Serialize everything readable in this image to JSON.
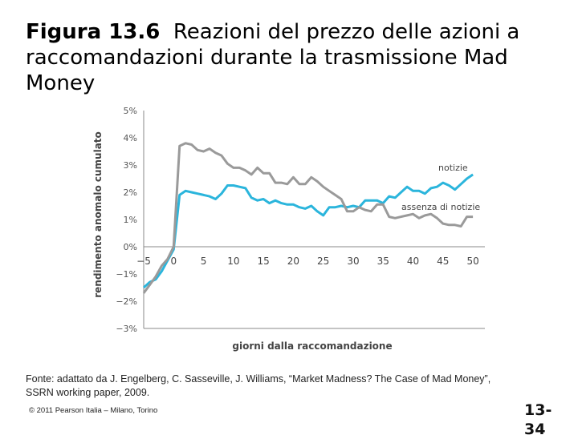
{
  "slide": {
    "title_lead": "Figura 13.6",
    "title_rest": "Reazioni del prezzo delle azioni a raccomandazioni durante la trasmissione Mad Money",
    "source": "Fonte: adattato da J. Engelberg, C. Sasseville, J. Williams, “Market Madness? The Case of Mad Money”, SSRN working paper, 2009.",
    "copyright": "© 2011 Pearson Italia – Milano, Torino",
    "page_number": "13-34"
  },
  "colors": {
    "news": "#2bb5dc",
    "no_news": "#9a9a9a",
    "axis": "#888888"
  },
  "chart_data": {
    "type": "line",
    "title": "",
    "xlabel": "giorni dalla raccomandazione",
    "ylabel": "rendimento anomalo cumulato",
    "xlim": [
      -5,
      52
    ],
    "ylim": [
      -3,
      5
    ],
    "x_ticks": [
      -5,
      0,
      5,
      10,
      15,
      20,
      25,
      30,
      35,
      40,
      45,
      50
    ],
    "x_tick_labels": [
      "-5",
      "0",
      "5",
      "10",
      "15",
      "20",
      "25",
      "30",
      "35",
      "40",
      "45",
      "50"
    ],
    "y_ticks": [
      -3,
      -2,
      -1,
      0,
      1,
      2,
      3,
      4,
      5
    ],
    "y_tick_labels": [
      "-3%",
      "-2%",
      "-1%",
      "0%",
      "1%",
      "2%",
      "3%",
      "4%",
      "5%"
    ],
    "series": [
      {
        "name": "notizie",
        "x": [
          -5,
          -4,
          -3,
          -2,
          -1,
          0,
          1,
          2,
          3,
          4,
          5,
          6,
          7,
          8,
          9,
          10,
          11,
          12,
          13,
          14,
          15,
          16,
          17,
          18,
          19,
          20,
          21,
          22,
          23,
          24,
          25,
          26,
          27,
          28,
          29,
          30,
          31,
          32,
          33,
          34,
          35,
          36,
          37,
          38,
          39,
          40,
          41,
          42,
          43,
          44,
          45,
          46,
          47,
          48,
          49,
          50
        ],
        "values": [
          -1.5,
          -1.3,
          -1.2,
          -0.9,
          -0.5,
          -0.1,
          1.9,
          2.05,
          2.0,
          1.95,
          1.9,
          1.85,
          1.75,
          1.95,
          2.25,
          2.25,
          2.2,
          2.15,
          1.8,
          1.7,
          1.75,
          1.6,
          1.7,
          1.6,
          1.55,
          1.55,
          1.45,
          1.4,
          1.5,
          1.3,
          1.15,
          1.45,
          1.45,
          1.5,
          1.45,
          1.5,
          1.45,
          1.7,
          1.7,
          1.7,
          1.6,
          1.85,
          1.8,
          2.0,
          2.2,
          2.05,
          2.05,
          1.95,
          2.15,
          2.2,
          2.35,
          2.25,
          2.1,
          2.3,
          2.5,
          2.65
        ]
      },
      {
        "name": "assenza di notizie",
        "x": [
          -5,
          -4,
          -3,
          -2,
          -1,
          0,
          1,
          2,
          3,
          4,
          5,
          6,
          7,
          8,
          9,
          10,
          11,
          12,
          13,
          14,
          15,
          16,
          17,
          18,
          19,
          20,
          21,
          22,
          23,
          24,
          25,
          26,
          27,
          28,
          29,
          30,
          31,
          32,
          33,
          34,
          35,
          36,
          37,
          38,
          39,
          40,
          41,
          42,
          43,
          44,
          45,
          46,
          47,
          48,
          49,
          50
        ],
        "values": [
          -1.7,
          -1.4,
          -1.1,
          -0.7,
          -0.45,
          0.0,
          3.7,
          3.8,
          3.75,
          3.55,
          3.5,
          3.6,
          3.45,
          3.35,
          3.05,
          2.9,
          2.9,
          2.8,
          2.65,
          2.9,
          2.7,
          2.7,
          2.35,
          2.35,
          2.3,
          2.55,
          2.3,
          2.3,
          2.55,
          2.4,
          2.2,
          2.05,
          1.9,
          1.75,
          1.3,
          1.3,
          1.45,
          1.35,
          1.3,
          1.55,
          1.55,
          1.1,
          1.05,
          1.1,
          1.15,
          1.2,
          1.05,
          1.15,
          1.2,
          1.05,
          0.85,
          0.8,
          0.8,
          0.75,
          1.1,
          1.1
        ]
      }
    ],
    "legend": "series labels at right end of lines"
  }
}
